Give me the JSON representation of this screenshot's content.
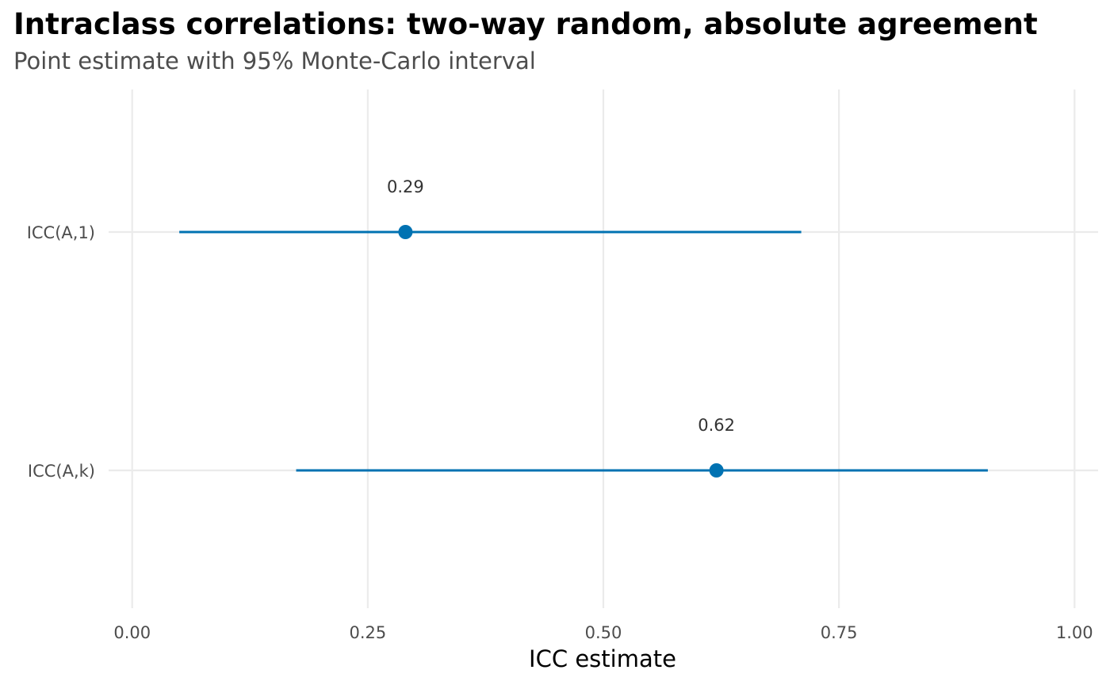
{
  "chart_data": {
    "type": "dot-interval",
    "title": "Intraclass correlations: two-way random, absolute agreement",
    "subtitle": "Point estimate with 95% Monte-Carlo interval",
    "xlabel": "ICC estimate",
    "ylabel": "",
    "xlim": [
      -0.025,
      1.025
    ],
    "x_ticks": [
      0.0,
      0.25,
      0.5,
      0.75,
      1.0
    ],
    "x_tick_labels": [
      "0.00",
      "0.25",
      "0.50",
      "0.75",
      "1.00"
    ],
    "categories": [
      "ICC(A,1)",
      "ICC(A,k)"
    ],
    "points": [
      {
        "category": "ICC(A,1)",
        "estimate": 0.29,
        "lower": 0.05,
        "upper": 0.71,
        "label": "0.29"
      },
      {
        "category": "ICC(A,k)",
        "estimate": 0.62,
        "lower": 0.174,
        "upper": 0.908,
        "label": "0.62"
      }
    ],
    "grid": true,
    "legend": "none",
    "color": "#0072B2",
    "grid_color": "#ebebeb"
  }
}
